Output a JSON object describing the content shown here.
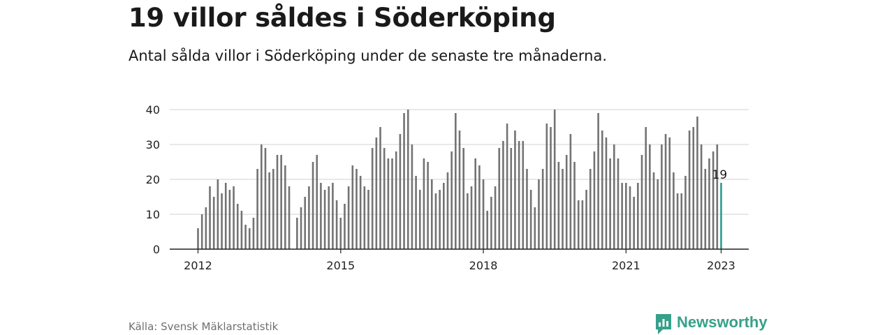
{
  "title": "19 villor såldes i Söderköping",
  "subtitle": "Antal sålda villor i Söderköping under de senaste tre månaderna.",
  "source": "Källa: Svensk Mäklarstatistik",
  "brand": {
    "name": "Newsworthy",
    "color": "#37a08a",
    "icon": "newsworthy-logo-icon"
  },
  "colors": {
    "bar": "#737373",
    "highlight": "#2a9d8f",
    "grid": "#d9d9d9",
    "axis": "#222222"
  },
  "chart_data": {
    "type": "bar",
    "title": "",
    "xlabel": "",
    "ylabel": "",
    "ylim": [
      0,
      40
    ],
    "yticks": [
      0,
      10,
      20,
      30,
      40
    ],
    "grid": true,
    "x_start": "2012-01",
    "x_end": "2023-01",
    "xticks": [
      "2012",
      "2015",
      "2018",
      "2021",
      "2023"
    ],
    "series": [
      {
        "values": [
          6,
          10,
          12,
          18,
          15,
          20,
          16,
          19,
          17,
          18,
          13,
          11,
          7,
          6,
          9,
          23,
          30,
          29,
          22,
          23,
          27,
          27,
          24,
          18,
          null,
          9,
          12,
          15,
          18,
          25,
          27,
          19,
          17,
          18,
          19,
          14,
          9,
          13,
          18,
          24,
          23,
          21,
          18,
          17,
          29,
          32,
          35,
          29,
          26,
          26,
          28,
          33,
          39,
          40,
          30,
          21,
          17,
          26,
          25,
          20,
          16,
          17,
          19,
          22,
          28,
          39,
          34,
          29,
          16,
          18,
          26,
          24,
          20,
          11,
          15,
          18,
          29,
          31,
          36,
          29,
          34,
          31,
          31,
          23,
          17,
          12,
          20,
          23,
          36,
          35,
          40,
          25,
          23,
          27,
          33,
          25,
          14,
          14,
          17,
          23,
          28,
          39,
          34,
          32,
          26,
          30,
          26,
          19,
          19,
          18,
          15,
          19,
          27,
          35,
          30,
          22,
          20,
          30,
          33,
          32,
          22,
          16,
          16,
          21,
          34,
          35,
          38,
          30,
          23,
          26,
          28,
          30,
          19
        ]
      }
    ],
    "highlight": {
      "label": "19",
      "value": 19
    }
  }
}
